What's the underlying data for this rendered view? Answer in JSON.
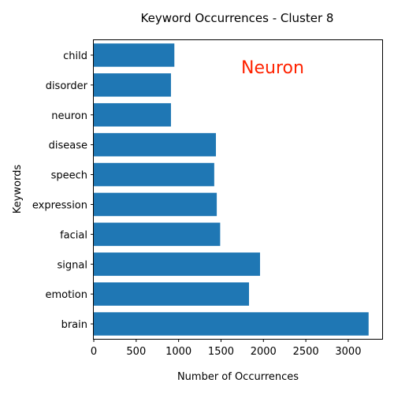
{
  "chart_data": {
    "type": "bar",
    "orientation": "horizontal",
    "title": "Keyword Occurrences - Cluster 8",
    "xlabel": "Number of Occurrences",
    "ylabel": "Keywords",
    "categories": [
      "brain",
      "emotion",
      "signal",
      "facial",
      "expression",
      "speech",
      "disease",
      "neuron",
      "disorder",
      "child"
    ],
    "values": [
      3240,
      1830,
      1960,
      1490,
      1450,
      1420,
      1440,
      910,
      910,
      950
    ],
    "xlim": [
      0,
      3400
    ],
    "xticks": [
      0,
      500,
      1000,
      1500,
      2000,
      2500,
      3000
    ],
    "grid": false,
    "bar_color": "#1f77b4",
    "annotation": {
      "text": "Neuron",
      "color": "#ff2200"
    }
  }
}
